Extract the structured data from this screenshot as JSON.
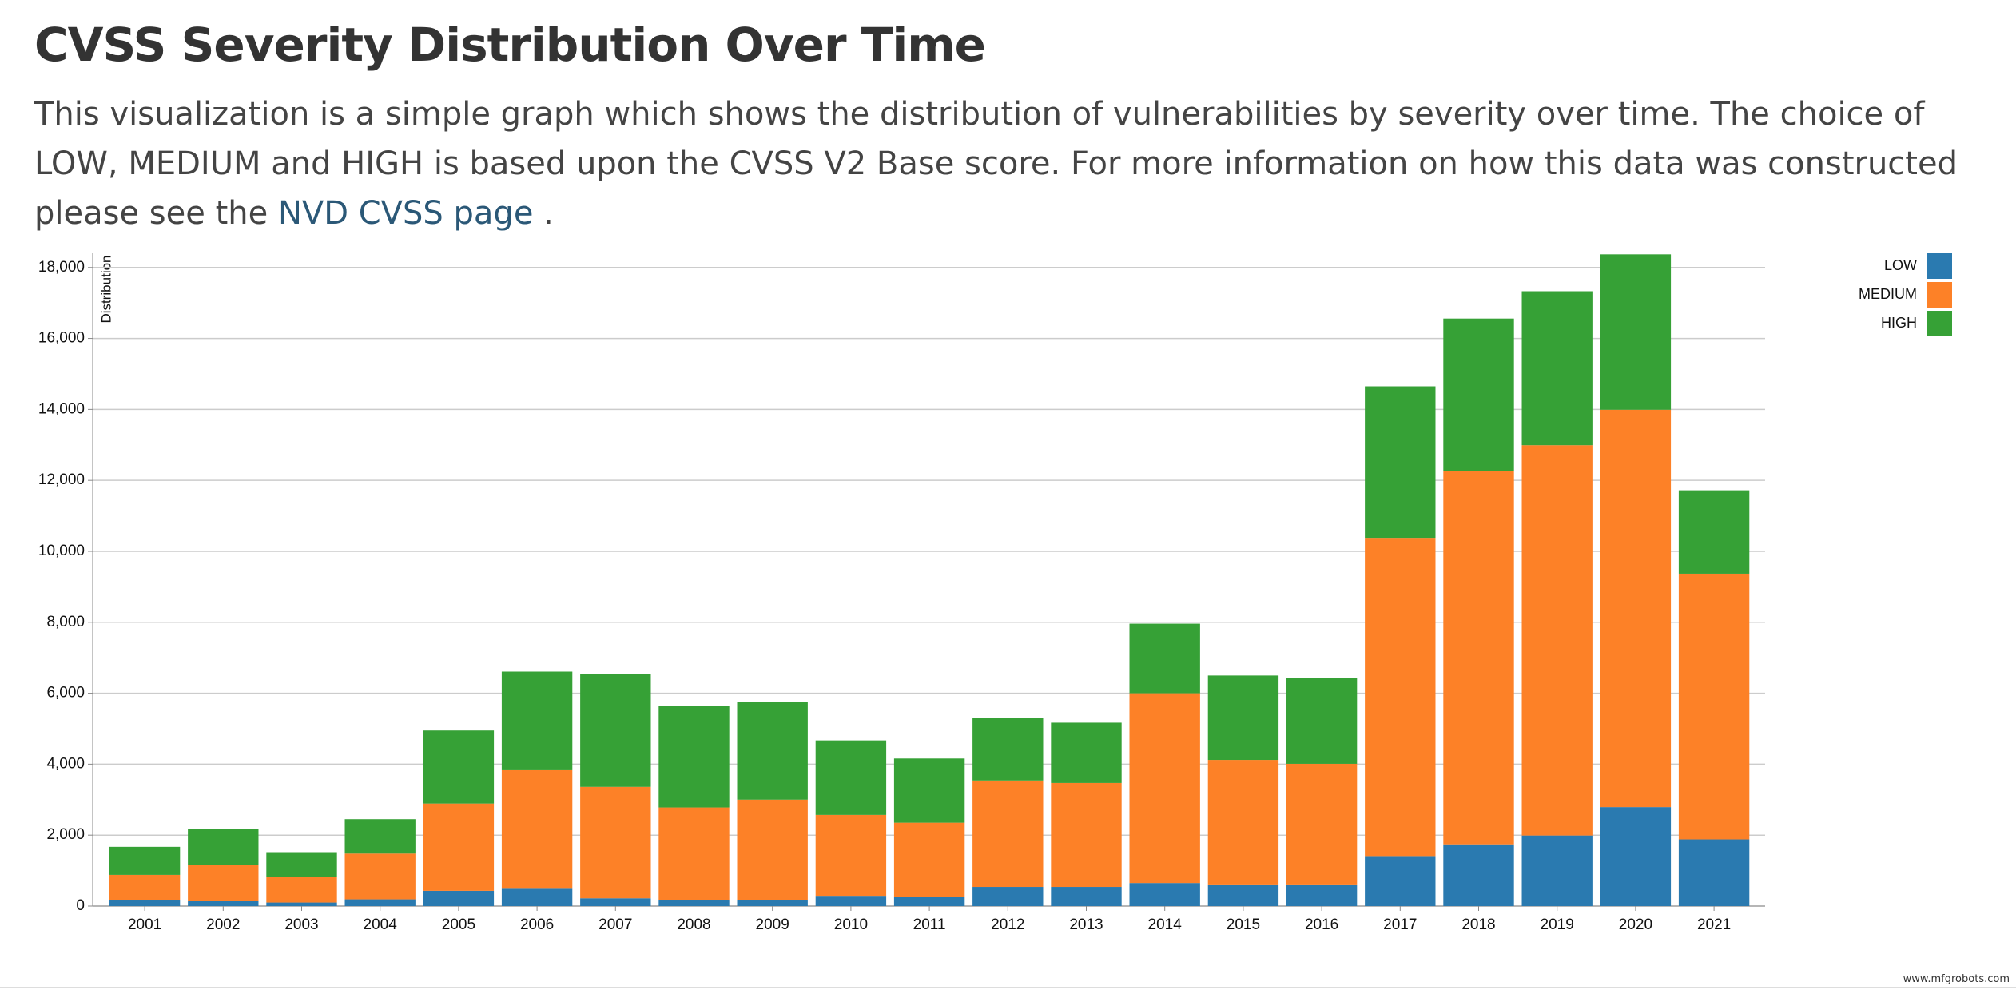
{
  "header": {
    "title": "CVSS Severity Distribution Over Time",
    "description": {
      "text_before": "This visualization is a simple graph which shows the distribution of vulnerabilities by severity over time. The choice of LOW, MEDIUM and HIGH is based upon the CVSS V2 Base score. For more information on how this data was constructed please see the",
      "link": "NVD CVSS page",
      "text_after": "."
    }
  },
  "chart_data": {
    "type": "stacked_bar",
    "y_label": "Distribution",
    "categories": [
      "2001",
      "2002",
      "2003",
      "2004",
      "2005",
      "2006",
      "2007",
      "2008",
      "2009",
      "2010",
      "2011",
      "2012",
      "2013",
      "2014",
      "2015",
      "2016",
      "2017",
      "2018",
      "2019",
      "2020",
      "2021"
    ],
    "series": [
      {
        "name": "LOW",
        "color": "#2a7ab0",
        "values": [
          180,
          150,
          100,
          190,
          430,
          510,
          220,
          180,
          180,
          290,
          250,
          540,
          540,
          650,
          610,
          610,
          1410,
          1740,
          1990,
          2790,
          1880
        ]
      },
      {
        "name": "MEDIUM",
        "color": "#fd8127",
        "values": [
          700,
          1000,
          730,
          1290,
          2460,
          3320,
          3140,
          2600,
          2820,
          2280,
          2100,
          3000,
          2930,
          5350,
          3510,
          3400,
          8970,
          10520,
          11000,
          11200,
          7490
        ]
      },
      {
        "name": "HIGH",
        "color": "#36a136",
        "values": [
          790,
          1020,
          690,
          970,
          2060,
          2780,
          3180,
          2860,
          2750,
          2100,
          1810,
          1770,
          1700,
          1960,
          2380,
          2430,
          4270,
          4300,
          4340,
          4380,
          2350
        ]
      }
    ],
    "ylim": [
      0,
      18400
    ],
    "yticks": [
      0,
      {
        "value": 2000,
        "label": "2,000"
      },
      {
        "value": 4000,
        "label": "4,000"
      },
      {
        "value": 6000,
        "label": "6,000"
      },
      {
        "value": 8000,
        "label": "8,000"
      },
      {
        "value": 10000,
        "label": "10,000"
      },
      {
        "value": 12000,
        "label": "12,000"
      },
      {
        "value": 14000,
        "label": "14,000"
      },
      {
        "value": 16000,
        "label": "16,000"
      },
      {
        "value": 18000,
        "label": "18,000"
      }
    ],
    "grid": true,
    "legend": "top-right"
  },
  "watermark": "www.mfgrobots.com"
}
